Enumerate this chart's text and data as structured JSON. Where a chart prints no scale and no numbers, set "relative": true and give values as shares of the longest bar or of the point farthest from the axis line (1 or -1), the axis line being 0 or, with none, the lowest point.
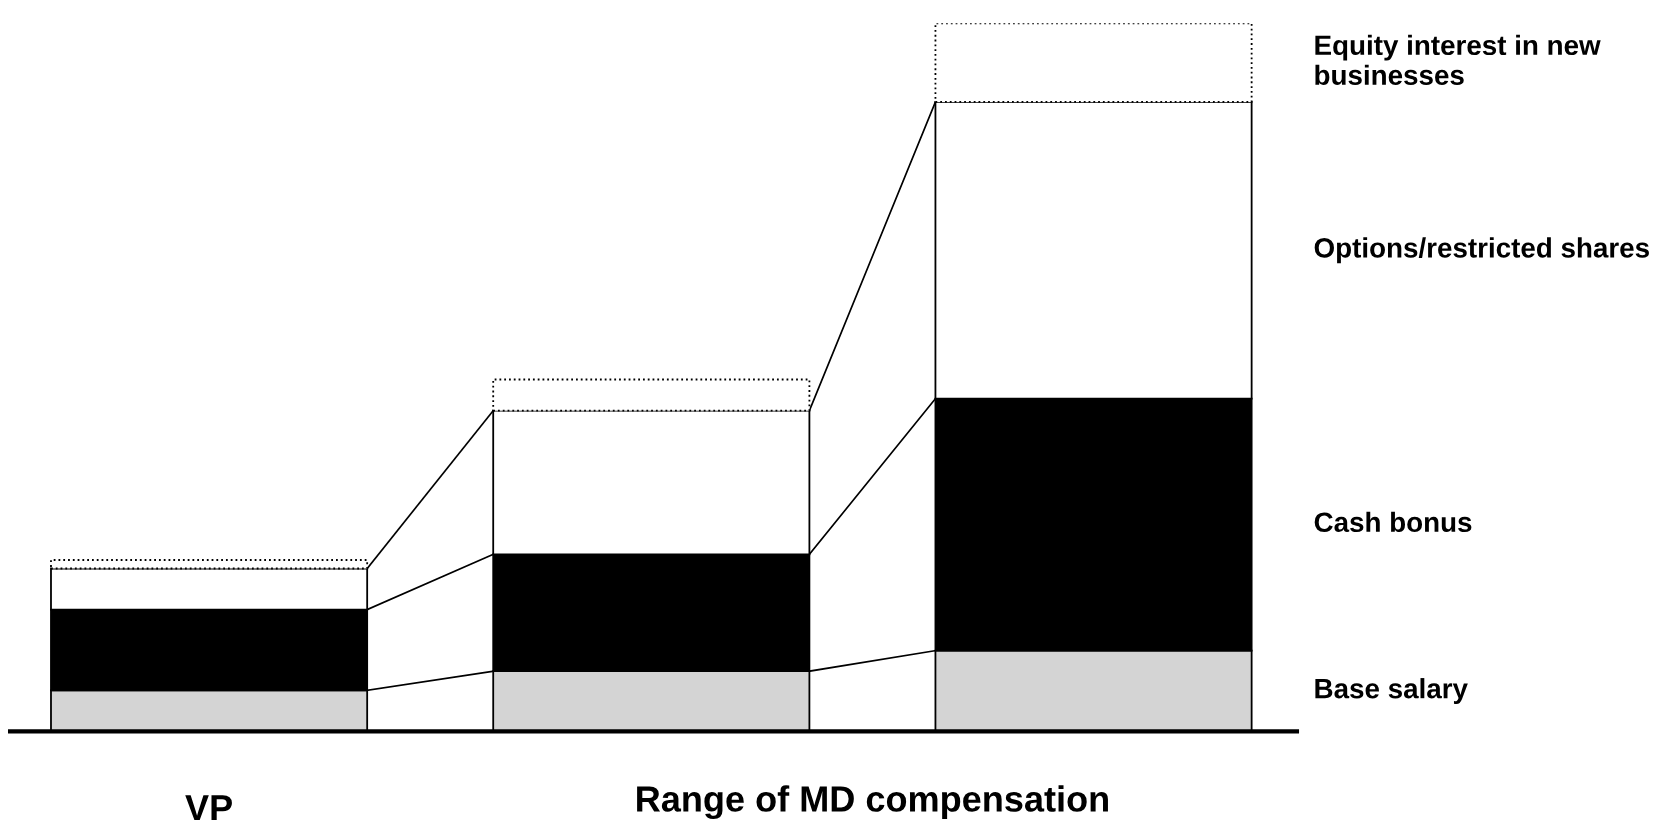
{
  "chart_data": {
    "type": "bar",
    "stacked": true,
    "relative": true,
    "categories": [
      "VP",
      null,
      null
    ],
    "annotations": [
      "Range of MD compensation"
    ],
    "series": [
      {
        "name": "Base salary",
        "color": "#d4d4d4",
        "values": [
          0.058,
          0.085,
          0.114
        ]
      },
      {
        "name": "Cash bonus",
        "color": "#000000",
        "values": [
          0.114,
          0.165,
          0.356
        ]
      },
      {
        "name": "Options/restricted shares",
        "color": "#ffffff",
        "values": [
          0.058,
          0.203,
          0.419
        ]
      },
      {
        "name": "Equity interest in new businesses",
        "color": "#ffffff",
        "line_style": "dotted",
        "values": [
          0.012,
          0.044,
          0.111
        ]
      }
    ],
    "grid": false,
    "legend": false
  }
}
